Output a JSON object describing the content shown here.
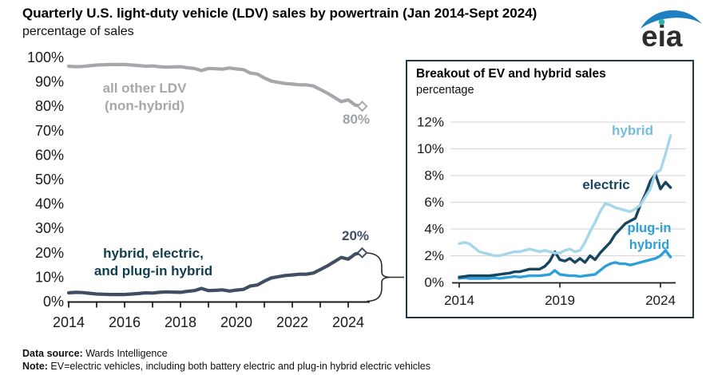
{
  "header": {
    "title": "Quarterly U.S. light-duty vehicle (LDV) sales by powertrain (Jan 2014-Sept 2024)",
    "subtitle": "percentage of sales",
    "logo_text": "eia"
  },
  "footer": {
    "source_label": "Data source:",
    "source_text": " Wards Intelligence",
    "note_label": "Note:",
    "note_text": " EV=electric vehicles, including both battery electric and plug-in hybrid electric vehicles"
  },
  "colors": {
    "gray_series": "#a5a7aa",
    "dark_series": "#3f4e63",
    "dark_label": "#113e4f",
    "hybrid_line": "#a6d6ea",
    "hybrid_label": "#72bfe0",
    "electric": "#16455f",
    "plugin": "#2e9fd8",
    "axis_text": "#1a1a1a",
    "gridline": "#d9d9d9",
    "inset_border": "#223744",
    "logo_blue": "#1f7fc1",
    "logo_teal": "#35b0ab"
  },
  "chart_data": [
    {
      "type": "line",
      "title": "Quarterly U.S. light-duty vehicle (LDV) sales by powertrain (Jan 2014-Sept 2024)",
      "ylabel": "percentage of sales",
      "ylim": [
        0,
        100
      ],
      "x_start": 2014.0,
      "x_step": 0.25,
      "x_ticks": [
        2014,
        2015,
        2016,
        2017,
        2018,
        2019,
        2020,
        2021,
        2022,
        2023,
        2024
      ],
      "x_tick_labels": [
        {
          "v": 2014,
          "label": "2014"
        },
        {
          "v": 2016,
          "label": "2016"
        },
        {
          "v": 2018,
          "label": "2018"
        },
        {
          "v": 2020,
          "label": "2020"
        },
        {
          "v": 2022,
          "label": "2022"
        },
        {
          "v": 2024,
          "label": "2024"
        }
      ],
      "y_ticks": [
        {
          "v": 0,
          "label": "0%"
        },
        {
          "v": 10,
          "label": "10%"
        },
        {
          "v": 20,
          "label": "20%"
        },
        {
          "v": 30,
          "label": "30%"
        },
        {
          "v": 40,
          "label": "40%"
        },
        {
          "v": 50,
          "label": "50%"
        },
        {
          "v": 60,
          "label": "60%"
        },
        {
          "v": 70,
          "label": "70%"
        },
        {
          "v": 80,
          "label": "80%"
        },
        {
          "v": 90,
          "label": "90%"
        },
        {
          "v": 100,
          "label": "100%"
        }
      ],
      "series": [
        {
          "name": "all other LDV (non-hybrid)",
          "color": "#a5a7aa",
          "end_value_label": "80%",
          "values": [
            96.4,
            96.2,
            96.3,
            96.6,
            96.9,
            97.0,
            97.1,
            97.1,
            97.1,
            96.9,
            96.7,
            96.4,
            96.5,
            96.2,
            96.0,
            96.1,
            96.2,
            95.8,
            95.5,
            94.6,
            95.5,
            95.4,
            95.2,
            95.7,
            95.3,
            95.0,
            93.6,
            93.2,
            91.6,
            90.3,
            89.8,
            89.3,
            89.1,
            88.8,
            88.8,
            88.3,
            86.9,
            85.4,
            83.7,
            81.9,
            82.6,
            80.5,
            80.0
          ]
        },
        {
          "name": "hybrid, electric, and plug-in hybrid",
          "color": "#3f4e63",
          "end_value_label": "20%",
          "values": [
            3.6,
            3.8,
            3.7,
            3.4,
            3.1,
            3.0,
            2.9,
            2.9,
            2.9,
            3.1,
            3.3,
            3.6,
            3.5,
            3.8,
            4.0,
            3.9,
            3.8,
            4.2,
            4.5,
            5.4,
            4.5,
            4.6,
            4.8,
            4.3,
            4.7,
            5.0,
            6.4,
            6.8,
            8.4,
            9.7,
            10.2,
            10.7,
            10.9,
            11.2,
            11.2,
            11.7,
            13.1,
            14.6,
            16.3,
            18.1,
            17.4,
            19.5,
            20.0
          ]
        }
      ],
      "annotations": {
        "gray_series_label": "all other LDV\n(non-hybrid)",
        "dark_series_label": "hybrid, electric,\nand plug-in hybrid",
        "gray_end_label": "80%",
        "dark_end_label": "20%"
      }
    },
    {
      "type": "line",
      "title": "Breakout of EV and hybrid sales",
      "subtitle": "percentage",
      "ylim": [
        0,
        12
      ],
      "x_start": 2014.0,
      "x_step": 0.25,
      "x_tick_labels": [
        {
          "v": 2014,
          "label": "2014"
        },
        {
          "v": 2019,
          "label": "2019"
        },
        {
          "v": 2024,
          "label": "2024"
        }
      ],
      "y_ticks": [
        {
          "v": 0,
          "label": "0%"
        },
        {
          "v": 2,
          "label": "2%"
        },
        {
          "v": 4,
          "label": "4%"
        },
        {
          "v": 6,
          "label": "6%"
        },
        {
          "v": 8,
          "label": "8%"
        },
        {
          "v": 10,
          "label": "10%"
        },
        {
          "v": 12,
          "label": "12%"
        }
      ],
      "y_gridlines": [
        2,
        4,
        6,
        8,
        10,
        12
      ],
      "series": [
        {
          "name": "hybrid",
          "color": "#a6d6ea",
          "values": [
            2.9,
            3.0,
            2.9,
            2.6,
            2.3,
            2.2,
            2.1,
            2.0,
            2.0,
            2.1,
            2.2,
            2.3,
            2.3,
            2.4,
            2.5,
            2.4,
            2.3,
            2.4,
            2.3,
            2.2,
            2.2,
            2.4,
            2.5,
            2.3,
            2.4,
            3.0,
            3.8,
            4.5,
            5.3,
            5.9,
            5.8,
            5.6,
            5.5,
            5.4,
            5.3,
            5.5,
            5.8,
            6.4,
            7.0,
            8.2,
            8.4,
            9.6,
            11.0
          ]
        },
        {
          "name": "electric",
          "color": "#16455f",
          "values": [
            0.4,
            0.45,
            0.5,
            0.5,
            0.5,
            0.5,
            0.5,
            0.55,
            0.6,
            0.65,
            0.7,
            0.8,
            0.8,
            0.9,
            1.0,
            1.0,
            1.0,
            1.2,
            1.6,
            2.3,
            1.7,
            1.6,
            1.8,
            1.5,
            1.8,
            1.5,
            2.0,
            1.7,
            2.2,
            2.6,
            3.0,
            3.6,
            4.0,
            4.4,
            4.6,
            4.8,
            5.8,
            6.6,
            7.6,
            8.1,
            7.0,
            7.5,
            7.1
          ]
        },
        {
          "name": "plug-in hybrid",
          "color": "#2e9fd8",
          "values": [
            0.3,
            0.35,
            0.3,
            0.3,
            0.3,
            0.3,
            0.3,
            0.35,
            0.3,
            0.35,
            0.4,
            0.45,
            0.4,
            0.45,
            0.5,
            0.5,
            0.5,
            0.55,
            0.6,
            0.9,
            0.6,
            0.55,
            0.5,
            0.5,
            0.45,
            0.5,
            0.55,
            0.6,
            0.9,
            1.2,
            1.4,
            1.5,
            1.4,
            1.4,
            1.3,
            1.4,
            1.5,
            1.6,
            1.7,
            1.8,
            2.0,
            2.4,
            1.9
          ]
        }
      ],
      "labels": {
        "hybrid": "hybrid",
        "electric": "electric",
        "plugin": "plug-in\nhybrid"
      }
    }
  ]
}
